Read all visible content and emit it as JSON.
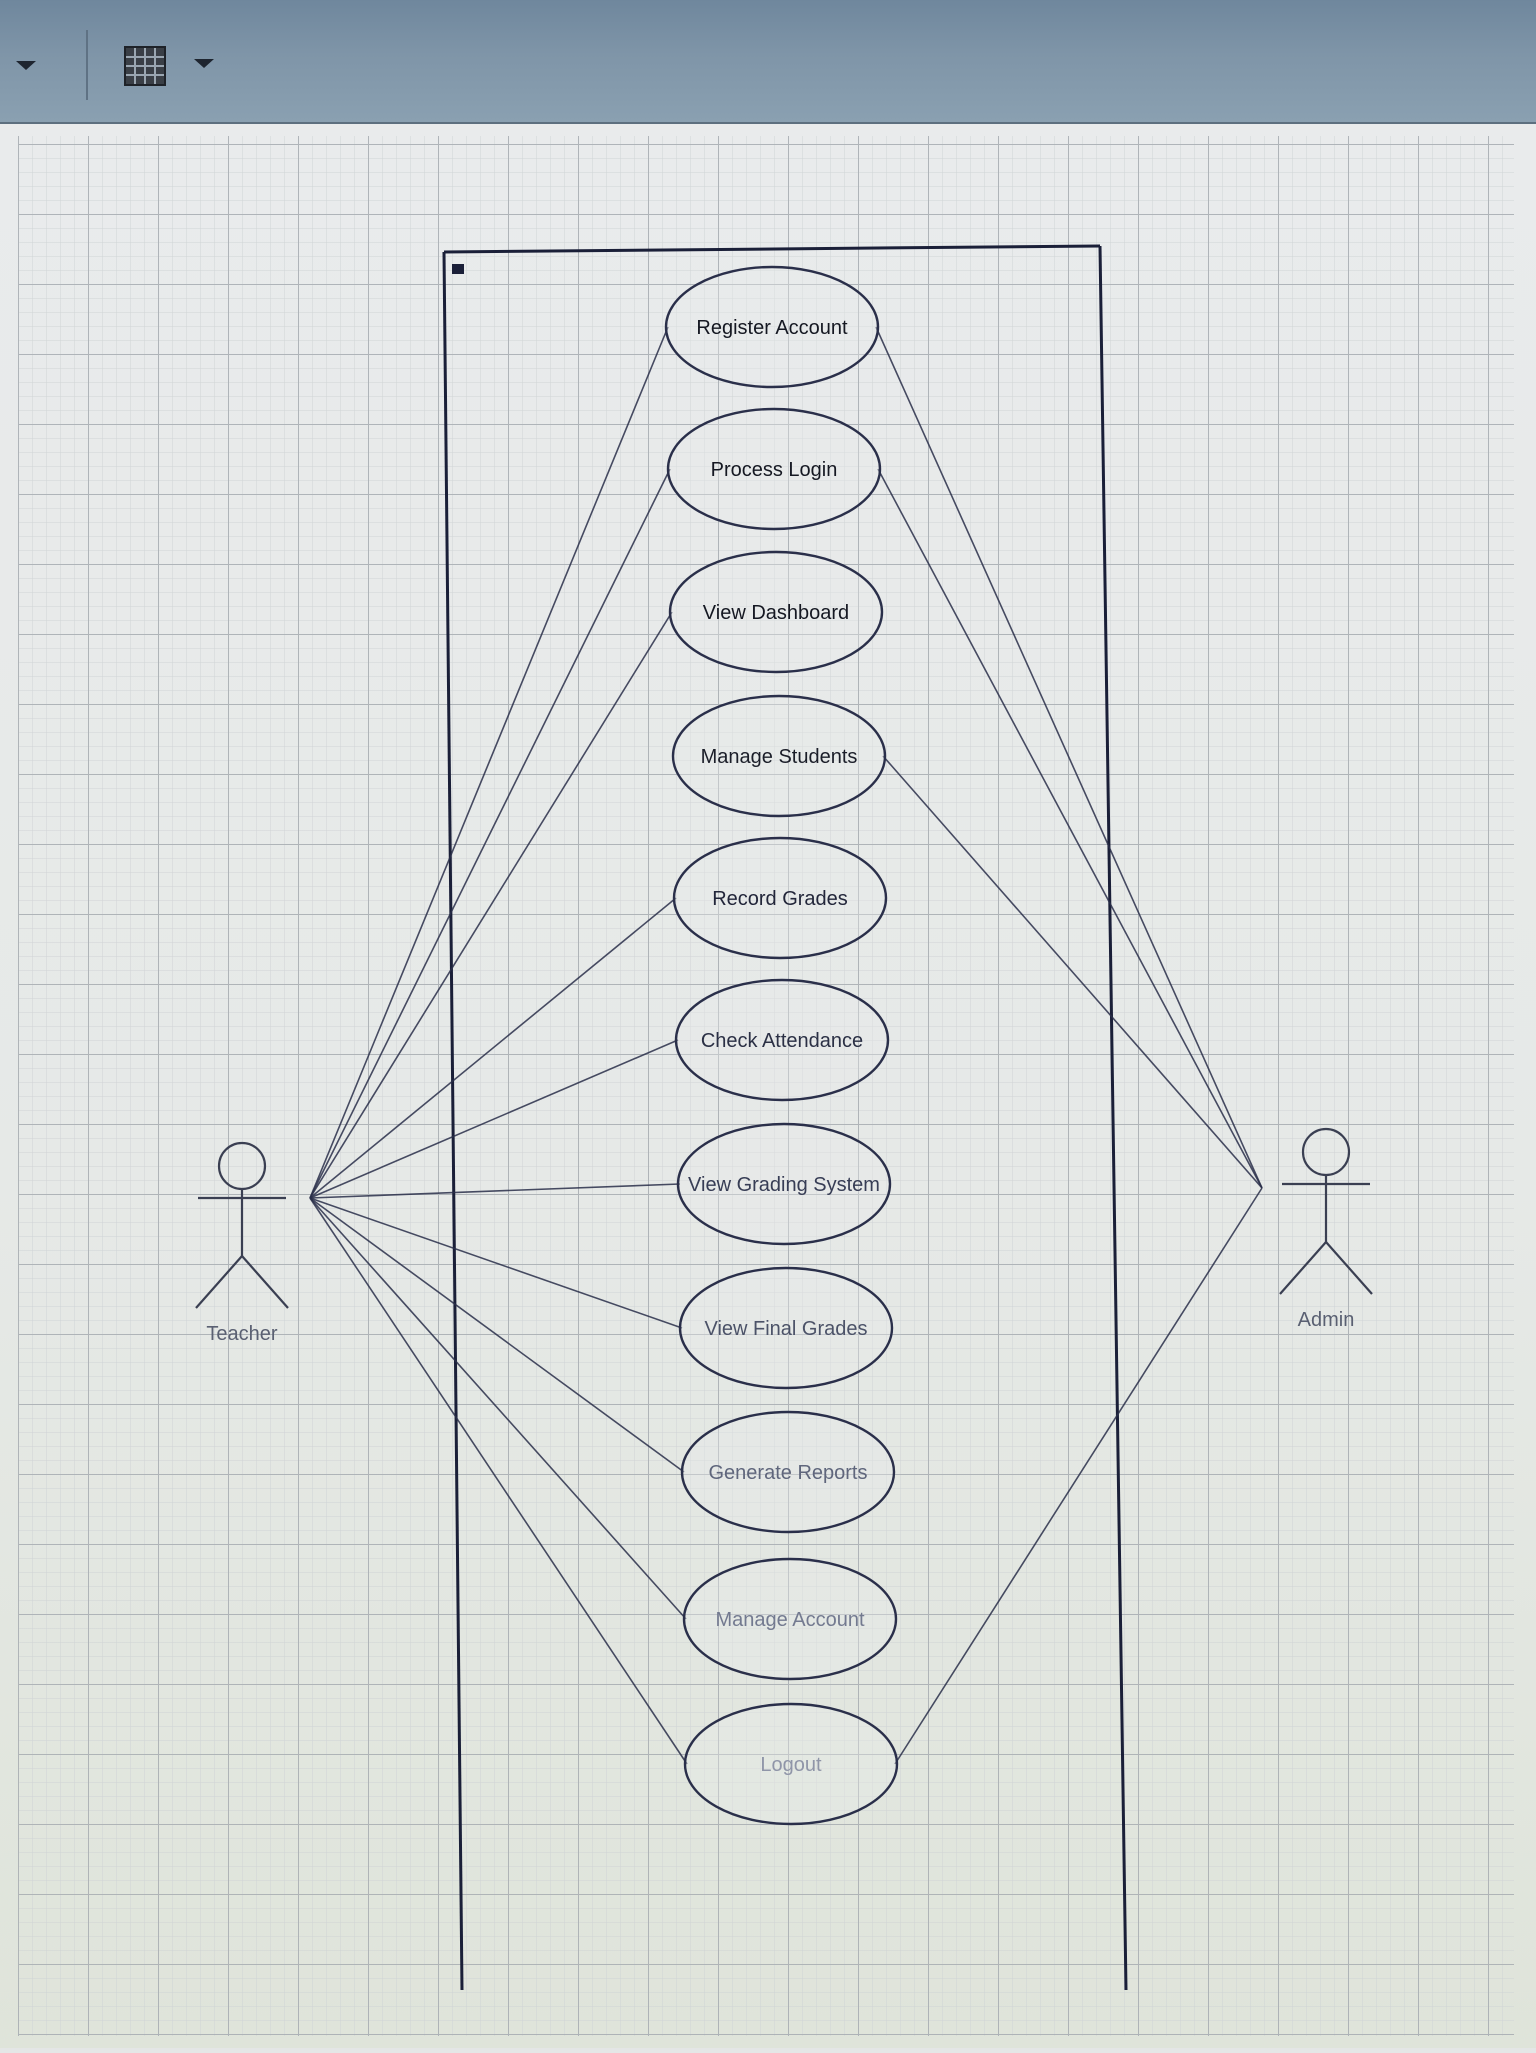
{
  "toolbar": {
    "items": [
      {
        "name": "dropdown-arrow-icon"
      },
      {
        "name": "grid-icon"
      },
      {
        "name": "grid-dropdown-arrow-icon"
      }
    ]
  },
  "diagram": {
    "use_cases": [
      {
        "id": "register",
        "label": "Register Account"
      },
      {
        "id": "login",
        "label": "Process Login"
      },
      {
        "id": "dashboard",
        "label": "View Dashboard"
      },
      {
        "id": "students",
        "label": "Manage Students"
      },
      {
        "id": "grades",
        "label": "Record Grades"
      },
      {
        "id": "attendance",
        "label": "Check Attendance"
      },
      {
        "id": "grading",
        "label": "View Grading System"
      },
      {
        "id": "final",
        "label": "View Final Grades"
      },
      {
        "id": "reports",
        "label": "Generate Reports"
      },
      {
        "id": "account",
        "label": "Manage Account"
      },
      {
        "id": "logout",
        "label": "Logout"
      }
    ],
    "actors": [
      {
        "id": "teacher",
        "label": "Teacher"
      },
      {
        "id": "admin",
        "label": "Admin"
      }
    ],
    "associations": [
      {
        "actor": "teacher",
        "use_case": "register"
      },
      {
        "actor": "teacher",
        "use_case": "login"
      },
      {
        "actor": "teacher",
        "use_case": "dashboard"
      },
      {
        "actor": "teacher",
        "use_case": "grades"
      },
      {
        "actor": "teacher",
        "use_case": "attendance"
      },
      {
        "actor": "teacher",
        "use_case": "grading"
      },
      {
        "actor": "teacher",
        "use_case": "final"
      },
      {
        "actor": "teacher",
        "use_case": "reports"
      },
      {
        "actor": "teacher",
        "use_case": "account"
      },
      {
        "actor": "teacher",
        "use_case": "logout"
      },
      {
        "actor": "admin",
        "use_case": "register"
      },
      {
        "actor": "admin",
        "use_case": "login"
      },
      {
        "actor": "admin",
        "use_case": "students"
      },
      {
        "actor": "admin",
        "use_case": "logout"
      }
    ]
  },
  "colors": {
    "line": "#2a2f4a",
    "grid_major": "#b3b8bc",
    "grid_minor": "#cdd1d4",
    "toolbar": "#7f95a8"
  }
}
